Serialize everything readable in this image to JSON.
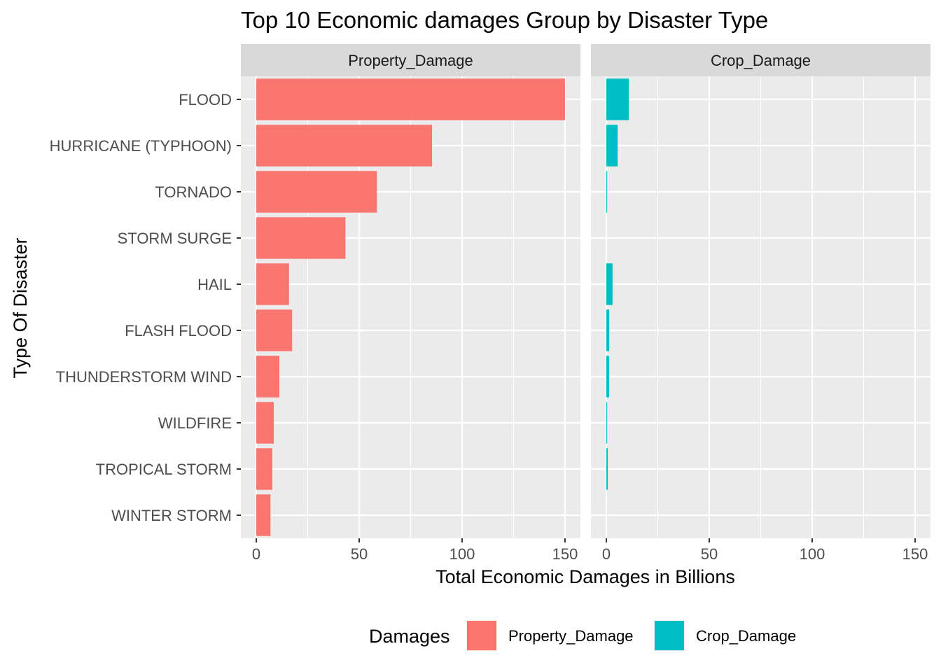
{
  "chart_data": {
    "type": "bar",
    "orientation": "horizontal",
    "title": "Top 10 Economic damages Group by Disaster Type",
    "xlabel": "Total Economic Damages in Billions",
    "ylabel": "Type Of Disaster",
    "xlim": [
      -7.5,
      157.5
    ],
    "x_ticks": [
      0,
      50,
      100,
      150
    ],
    "grid": true,
    "categories": [
      "FLOOD",
      "HURRICANE (TYPHOON)",
      "TORNADO",
      "STORM SURGE",
      "HAIL",
      "FLASH FLOOD",
      "THUNDERSTORM WIND",
      "WILDFIRE",
      "TROPICAL STORM",
      "WINTER STORM"
    ],
    "facets": [
      {
        "name": "Property_Damage",
        "color": "#F8766D",
        "values": [
          150.0,
          85.4,
          58.6,
          43.3,
          15.9,
          17.4,
          11.2,
          8.5,
          7.8,
          6.9
        ]
      },
      {
        "name": "Crop_Damage",
        "color": "#00BFC4",
        "values": [
          10.9,
          5.5,
          0.4,
          0.0,
          3.0,
          1.4,
          1.3,
          0.4,
          0.7,
          0.0
        ]
      }
    ],
    "legend": {
      "title": "Damages",
      "position": "bottom",
      "entries": [
        {
          "label": "Property_Damage",
          "color": "#F8766D"
        },
        {
          "label": "Crop_Damage",
          "color": "#00BFC4"
        }
      ]
    }
  }
}
